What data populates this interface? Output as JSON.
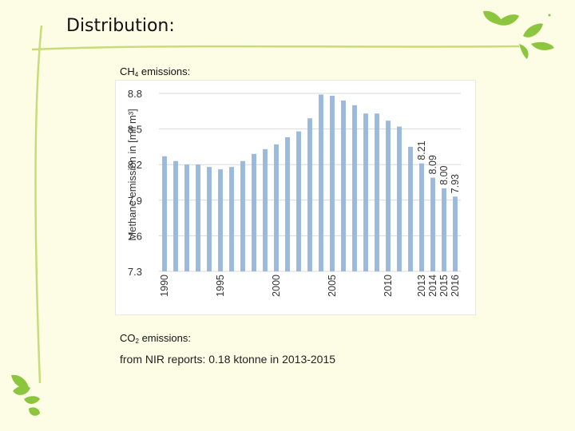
{
  "slide": {
    "title": "Distribution:",
    "ch4_label": "CH",
    "ch4_sub": "4",
    "ch4_suffix": " emissions:",
    "co2_label": "CO",
    "co2_sub": "2",
    "co2_suffix": " emissions:",
    "nir_text": "from NIR reports: 0.18 ktonne in 2013-2015"
  },
  "colors": {
    "background": "#fdfde6",
    "bar": "#9ab9dd",
    "grid": "#d9d9d9",
    "leaf": "#8cc63f",
    "swoosh": "#c8dc7a"
  },
  "chart_data": {
    "type": "bar",
    "title": "",
    "ylabel": "Methane emission in [mil m³]",
    "xlabel": "",
    "ylim": [
      7.3,
      8.8
    ],
    "yticks": [
      7.3,
      7.6,
      7.9,
      8.2,
      8.5,
      8.8
    ],
    "grid": true,
    "categories": [
      "1990",
      "1991",
      "1992",
      "1993",
      "1994",
      "1995",
      "1996",
      "1997",
      "1998",
      "1999",
      "2000",
      "2001",
      "2002",
      "2003",
      "2004",
      "2005",
      "2006",
      "2007",
      "2008",
      "2009",
      "2010",
      "2011",
      "2012",
      "2013",
      "2014",
      "2015",
      "2016"
    ],
    "values": [
      8.27,
      8.23,
      8.2,
      8.2,
      8.18,
      8.16,
      8.18,
      8.23,
      8.29,
      8.33,
      8.37,
      8.43,
      8.48,
      8.59,
      8.79,
      8.78,
      8.74,
      8.7,
      8.63,
      8.63,
      8.57,
      8.52,
      8.35,
      8.21,
      8.09,
      8.0,
      7.93
    ],
    "xtick_labels": [
      "1990",
      "1995",
      "2000",
      "2005",
      "2010",
      "2013",
      "2014",
      "2015",
      "2016"
    ],
    "data_labels": [
      {
        "category": "2013",
        "text": "8.21"
      },
      {
        "category": "2014",
        "text": "8.09"
      },
      {
        "category": "2015",
        "text": "8.00"
      },
      {
        "category": "2016",
        "text": "7.93"
      }
    ]
  }
}
